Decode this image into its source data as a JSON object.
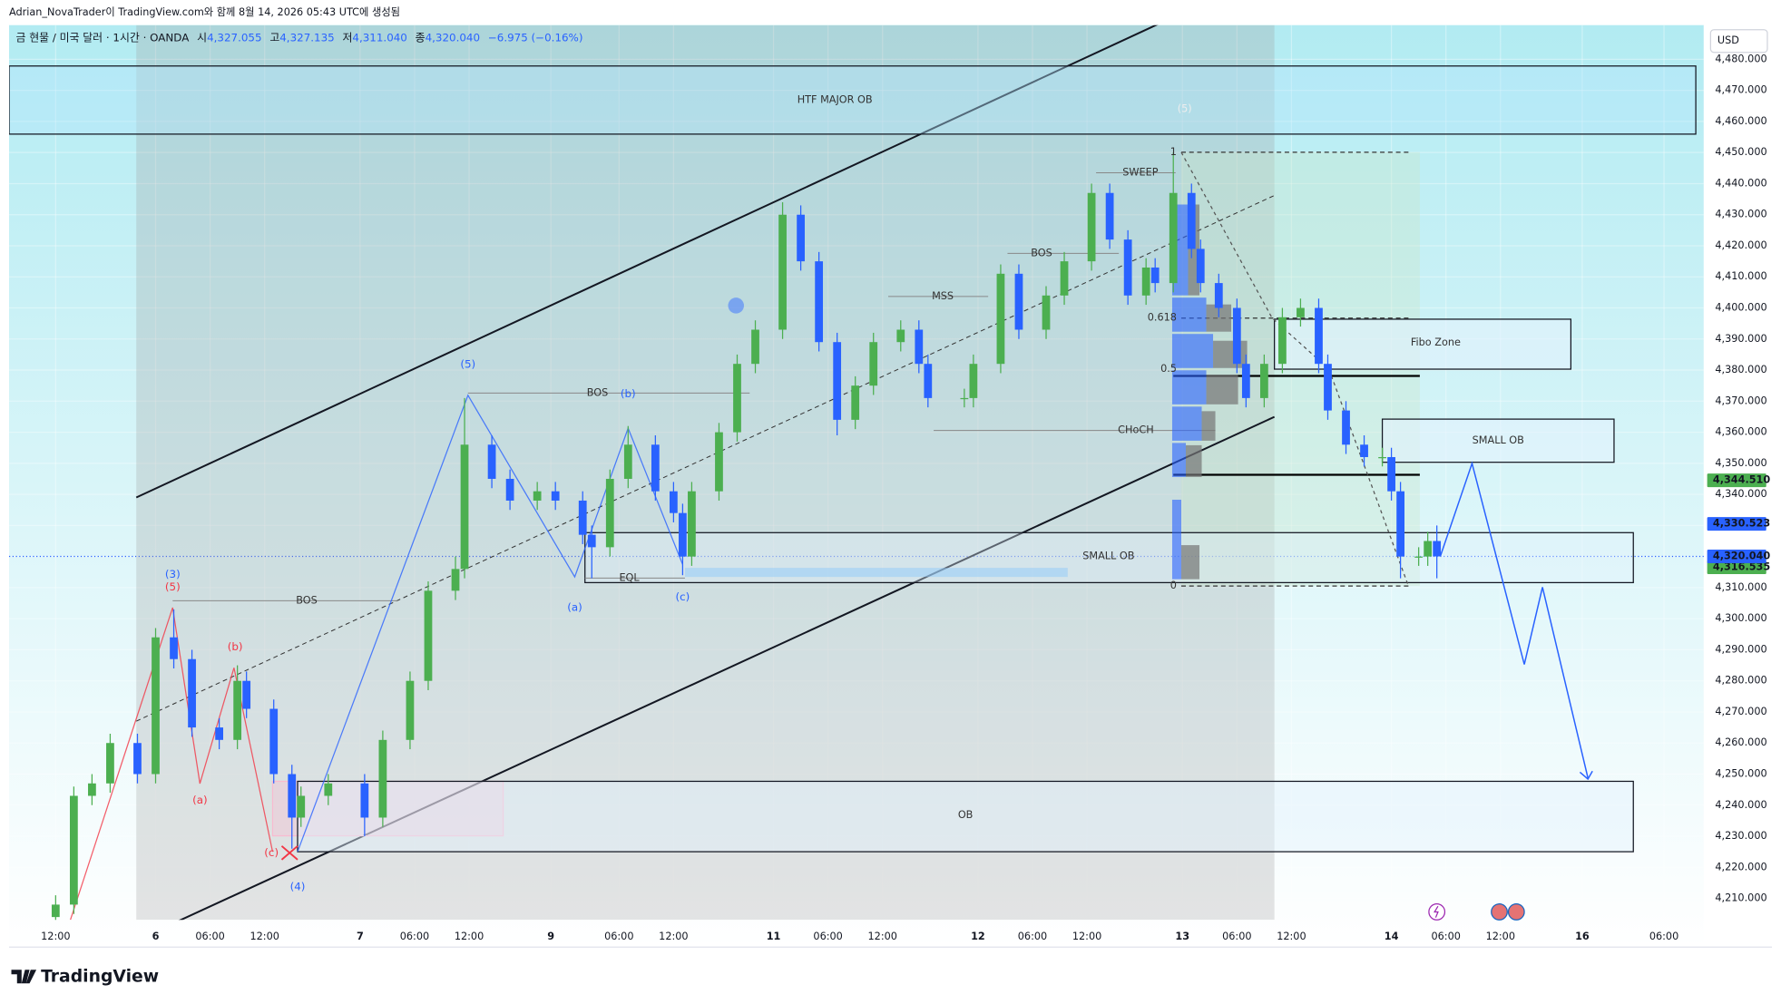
{
  "header": "Adrian_NovaTrader이 TradingView.com와 함께 8월 14, 2026 05:43 UTC에 생성됨",
  "legend": {
    "symbol": "금 현물 / 미국 달러 · 1시간 · OANDA",
    "open_label": "시",
    "open": "4,327.055",
    "high_label": "고",
    "high": "4,327.135",
    "low_label": "저",
    "low": "4,311.040",
    "close_label": "종",
    "close": "4,320.040",
    "change": "−6.975 (−0.16%)"
  },
  "currency": "USD",
  "brand": "TradingView",
  "chart_data": {
    "type": "candlestick",
    "up_color": "#4caf50",
    "down_color": "#2962ff",
    "x": [
      0,
      2,
      4,
      6,
      9,
      11,
      13,
      15,
      18,
      20,
      21,
      24,
      26,
      27,
      30,
      34,
      36,
      39,
      41,
      44,
      45,
      48,
      50,
      53,
      55,
      58,
      59,
      61,
      63,
      66,
      68,
      69,
      70,
      73,
      75,
      77,
      80,
      82,
      84,
      86,
      88,
      90,
      93,
      95,
      96,
      100,
      101,
      104,
      106,
      109,
      111,
      114,
      116,
      118,
      120,
      121,
      123,
      125,
      126,
      128,
      130,
      131,
      133,
      135,
      137,
      139,
      140,
      142,
      144,
      146,
      147,
      148,
      150,
      151,
      152
    ],
    "open": [
      4204,
      4208,
      4243,
      4247,
      4260,
      4250,
      4294,
      4287,
      4265,
      4261,
      4280,
      4271,
      4250,
      4236,
      4243,
      4247,
      4236,
      4261,
      4280,
      4309,
      4316,
      4356,
      4345,
      4338,
      4341,
      4338,
      4327,
      4323,
      4345,
      4356,
      4341,
      4334,
      4320,
      4341,
      4360,
      4382,
      4393,
      4430,
      4415,
      4389,
      4364,
      4375,
      4389,
      4393,
      4382,
      4371,
      4371,
      4382,
      4411,
      4393,
      4404,
      4415,
      4437,
      4422,
      4404,
      4413,
      4408,
      4437,
      4419,
      4408,
      4400,
      4382,
      4371,
      4382,
      4397,
      4400,
      4382,
      4367,
      4356,
      4352,
      4352,
      4341,
      4320,
      4320,
      4325
    ],
    "high": [
      4211,
      4246,
      4250,
      4263,
      4263,
      4297,
      4303,
      4290,
      4268,
      4285,
      4283,
      4274,
      4253,
      4246,
      4250,
      4250,
      4264,
      4283,
      4312,
      4320,
      4371,
      4359,
      4348,
      4344,
      4344,
      4341,
      4330,
      4348,
      4362,
      4359,
      4344,
      4337,
      4344,
      4363,
      4385,
      4396,
      4434,
      4433,
      4418,
      4392,
      4378,
      4392,
      4396,
      4396,
      4385,
      4374,
      4385,
      4414,
      4414,
      4407,
      4418,
      4440,
      4440,
      4425,
      4416,
      4416,
      4450,
      4440,
      4422,
      4411,
      4403,
      4385,
      4385,
      4400,
      4403,
      4403,
      4385,
      4370,
      4359,
      4355,
      4355,
      4344,
      4323,
      4328,
      4330
    ],
    "low": [
      4201,
      4205,
      4240,
      4244,
      4247,
      4247,
      4284,
      4262,
      4258,
      4258,
      4268,
      4247,
      4226,
      4233,
      4240,
      4230,
      4233,
      4258,
      4277,
      4306,
      4313,
      4342,
      4335,
      4335,
      4335,
      4324,
      4313,
      4320,
      4342,
      4338,
      4331,
      4314,
      4317,
      4338,
      4357,
      4379,
      4390,
      4412,
      4386,
      4359,
      4361,
      4372,
      4386,
      4379,
      4368,
      4368,
      4368,
      4379,
      4390,
      4390,
      4401,
      4412,
      4419,
      4401,
      4401,
      4405,
      4405,
      4416,
      4405,
      4397,
      4379,
      4368,
      4368,
      4379,
      4394,
      4379,
      4364,
      4353,
      4349,
      4349,
      4338,
      4313,
      4317,
      4317,
      4313
    ],
    "close": [
      4208,
      4243,
      4247,
      4260,
      4250,
      4294,
      4287,
      4265,
      4261,
      4280,
      4271,
      4250,
      4236,
      4243,
      4247,
      4236,
      4261,
      4280,
      4309,
      4316,
      4356,
      4345,
      4338,
      4341,
      4338,
      4327,
      4323,
      4345,
      4356,
      4341,
      4334,
      4320,
      4341,
      4360,
      4382,
      4393,
      4430,
      4415,
      4389,
      4364,
      4375,
      4389,
      4393,
      4382,
      4371,
      4371,
      4382,
      4411,
      4393,
      4404,
      4415,
      4437,
      4422,
      4404,
      4413,
      4408,
      4437,
      4419,
      4408,
      4400,
      4382,
      4371,
      4382,
      4397,
      4400,
      4382,
      4367,
      4356,
      4352,
      4352,
      4341,
      4320,
      4320,
      4325,
      4320.04
    ],
    "xlim": [
      -5.125,
      181.375
    ],
    "ylim": [
      4203.1,
      4491
    ],
    "xticks": [
      {
        "value": 0,
        "label": "12:00"
      },
      {
        "value": 11,
        "label": "6"
      },
      {
        "value": 17,
        "label": "06:00"
      },
      {
        "value": 23,
        "label": "12:00"
      },
      {
        "value": 33.5,
        "label": "7"
      },
      {
        "value": 39.5,
        "label": "06:00"
      },
      {
        "value": 45.5,
        "label": "12:00"
      },
      {
        "value": 54.5,
        "label": "9"
      },
      {
        "value": 62,
        "label": "06:00"
      },
      {
        "value": 68,
        "label": "12:00"
      },
      {
        "value": 79,
        "label": "11"
      },
      {
        "value": 85,
        "label": "06:00"
      },
      {
        "value": 91,
        "label": "12:00"
      },
      {
        "value": 101.5,
        "label": "12"
      },
      {
        "value": 107.5,
        "label": "06:00"
      },
      {
        "value": 113.5,
        "label": "12:00"
      },
      {
        "value": 124,
        "label": "13"
      },
      {
        "value": 130,
        "label": "06:00"
      },
      {
        "value": 136,
        "label": "12:00"
      },
      {
        "value": 147,
        "label": "14"
      },
      {
        "value": 153,
        "label": "06:00"
      },
      {
        "value": 159,
        "label": "12:00"
      },
      {
        "value": 168,
        "label": "16"
      },
      {
        "value": 177,
        "label": "06:00"
      }
    ],
    "yticks": [
      {
        "value": 4210,
        "label": "4,210.000"
      },
      {
        "value": 4220,
        "label": "4,220.000"
      },
      {
        "value": 4230,
        "label": "4,230.000"
      },
      {
        "value": 4240,
        "label": "4,240.000"
      },
      {
        "value": 4250,
        "label": "4,250.000"
      },
      {
        "value": 4260,
        "label": "4,260.000"
      },
      {
        "value": 4270,
        "label": "4,270.000"
      },
      {
        "value": 4280,
        "label": "4,280.000"
      },
      {
        "value": 4290,
        "label": "4,290.000"
      },
      {
        "value": 4300,
        "label": "4,300.000"
      },
      {
        "value": 4310,
        "label": "4,310.000"
      },
      {
        "value": 4320,
        "label": "4,320.000"
      },
      {
        "value": 4330,
        "label": "4,330.000"
      },
      {
        "value": 4340,
        "label": "4,340.000"
      },
      {
        "value": 4350,
        "label": "4,350.000"
      },
      {
        "value": 4360,
        "label": "4,360.000"
      },
      {
        "value": 4370,
        "label": "4,370.000"
      },
      {
        "value": 4380,
        "label": "4,380.000"
      },
      {
        "value": 4390,
        "label": "4,390.000"
      },
      {
        "value": 4400,
        "label": "4,400.000"
      },
      {
        "value": 4410,
        "label": "4,410.000"
      },
      {
        "value": 4420,
        "label": "4,420.000"
      },
      {
        "value": 4430,
        "label": "4,430.000"
      },
      {
        "value": 4440,
        "label": "4,440.000"
      },
      {
        "value": 4450,
        "label": "4,450.000"
      },
      {
        "value": 4460,
        "label": "4,460.000"
      },
      {
        "value": 4470,
        "label": "4,470.000"
      },
      {
        "value": 4480,
        "label": "4,480.000"
      }
    ],
    "price_tags": [
      {
        "value": 4344.51,
        "label": "4,344.510",
        "color": "#4caf50"
      },
      {
        "value": 4330.523,
        "label": "4,330.523",
        "color": "#2962ff"
      },
      {
        "value": 4316.535,
        "label": "4,316.535",
        "color": "#4caf50"
      },
      {
        "value": 4320.04,
        "label": "4,320.040",
        "color": "#2962ff"
      }
    ],
    "annotations": [
      "HTF MAJOR OB",
      "Fibo Zone",
      "SMALL OB",
      "SMALL OB",
      "OB",
      "BOS",
      "BOS",
      "BOS",
      "MSS",
      "SWEEP",
      "CHoCH",
      "EQL",
      "(5)",
      "(3)",
      "(5)",
      "(b)",
      "(a)",
      "(c)",
      "(4)",
      "(5)",
      "(b)",
      "(a)",
      "(c)",
      "1",
      "0.618",
      "0.5",
      "0"
    ]
  }
}
